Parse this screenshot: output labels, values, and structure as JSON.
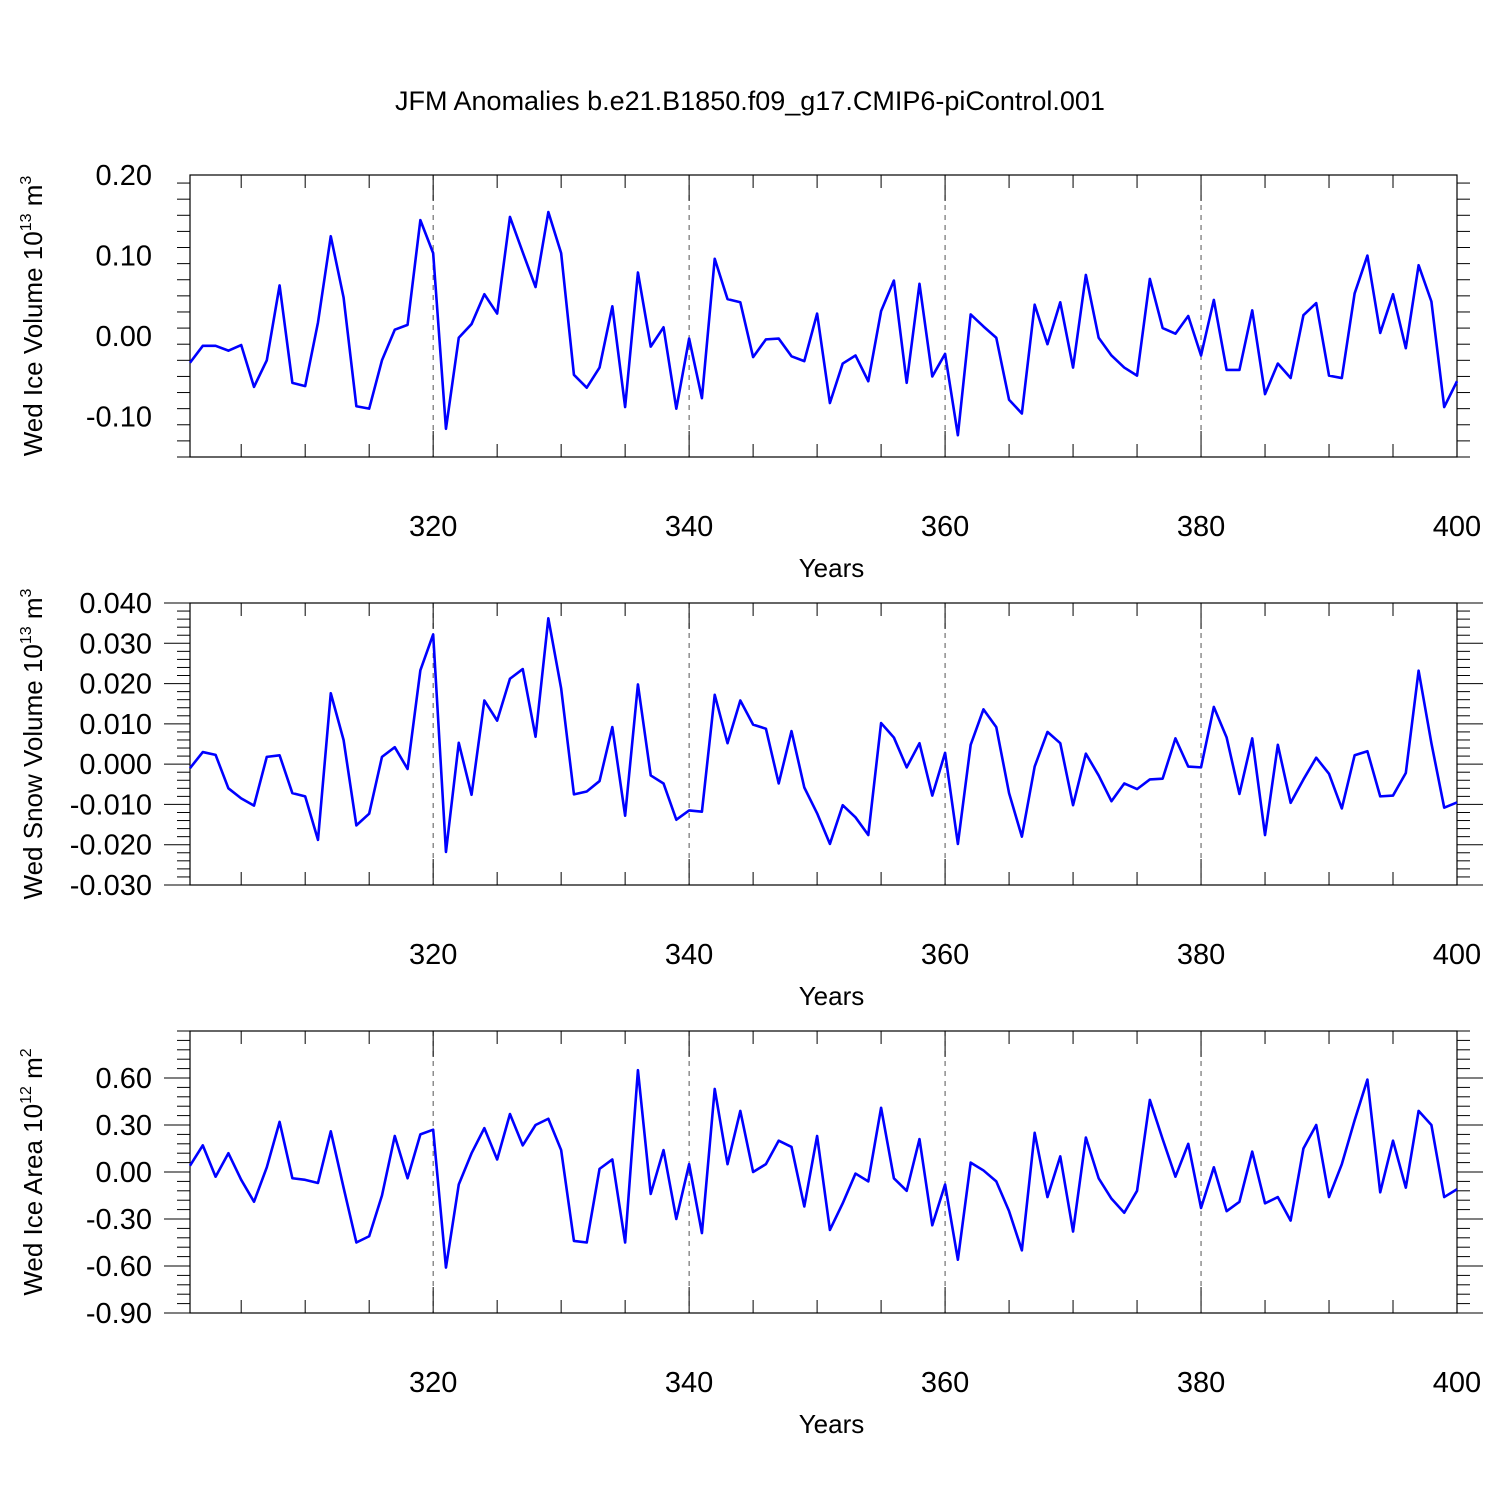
{
  "title": "JFM Anomalies b.e21.B1850.f09_g17.CMIP6-piControl.001",
  "colors": {
    "series": "#0000ff",
    "axis": "#000000",
    "grid": "#555555"
  },
  "chart_data": [
    {
      "type": "line",
      "ylabel": {
        "main": "Wed Ice Volume 10",
        "sup": "13",
        "unit": " m",
        "unit_sup": "3"
      },
      "xlabel": "Years",
      "xlim": [
        301,
        400
      ],
      "ylim": [
        -0.15,
        0.2
      ],
      "xticks": [
        "320",
        "340",
        "360",
        "380",
        "400"
      ],
      "yticks": [
        "0.20",
        "0.10",
        "0.00",
        "-0.10"
      ],
      "grid": "dashed vertical at major x ticks",
      "series": [
        {
          "x_start": 301,
          "values": [
            -0.033,
            -0.012,
            -0.012,
            -0.018,
            -0.011,
            -0.063,
            -0.03,
            0.063,
            -0.058,
            -0.062,
            0.017,
            0.124,
            0.048,
            -0.087,
            -0.09,
            -0.03,
            0.008,
            0.014,
            0.144,
            0.103,
            -0.115,
            -0.002,
            0.015,
            0.052,
            0.028,
            0.148,
            0.104,
            0.061,
            0.154,
            0.103,
            -0.048,
            -0.064,
            -0.039,
            0.037,
            -0.088,
            0.079,
            -0.013,
            0.011,
            -0.09,
            -0.003,
            -0.077,
            0.096,
            0.046,
            0.042,
            -0.026,
            -0.004,
            -0.003,
            -0.025,
            -0.031,
            0.028,
            -0.083,
            -0.034,
            -0.024,
            -0.056,
            0.031,
            0.069,
            -0.058,
            0.065,
            -0.05,
            -0.022,
            -0.123,
            0.027,
            0.012,
            -0.002,
            -0.079,
            -0.096,
            0.039,
            -0.01,
            0.042,
            -0.039,
            0.076,
            -0.002,
            -0.024,
            -0.039,
            -0.049,
            0.071,
            0.01,
            0.003,
            0.025,
            -0.024,
            0.045,
            -0.042,
            -0.042,
            0.032,
            -0.072,
            -0.034,
            -0.052,
            0.026,
            0.041,
            -0.049,
            -0.052,
            0.053,
            0.1,
            0.004,
            0.052,
            -0.015,
            0.088,
            0.043,
            -0.088,
            -0.056
          ]
        }
      ]
    },
    {
      "type": "line",
      "ylabel": {
        "main": "Wed Snow Volume 10",
        "sup": "13",
        "unit": " m",
        "unit_sup": "3"
      },
      "xlabel": "Years",
      "xlim": [
        301,
        400
      ],
      "ylim": [
        -0.03,
        0.04
      ],
      "xticks": [
        "320",
        "340",
        "360",
        "380",
        "400"
      ],
      "yticks": [
        "0.040",
        "0.030",
        "0.020",
        "0.010",
        "0.000",
        "-0.010",
        "-0.020",
        "-0.030"
      ],
      "grid": "dashed vertical at major x ticks",
      "series": [
        {
          "x_start": 301,
          "values": [
            -0.001,
            0.003,
            0.0023,
            -0.006,
            -0.0085,
            -0.0103,
            0.0018,
            0.0022,
            -0.0072,
            -0.008,
            -0.0188,
            0.0176,
            0.006,
            -0.0152,
            -0.0123,
            0.0018,
            0.0042,
            -0.0012,
            0.0233,
            0.0322,
            -0.0218,
            0.0053,
            -0.0076,
            0.0158,
            0.0108,
            0.0212,
            0.0236,
            0.0068,
            0.0362,
            0.0188,
            -0.0075,
            -0.0068,
            -0.0042,
            0.0092,
            -0.0128,
            0.0198,
            -0.0028,
            -0.0048,
            -0.0138,
            -0.0115,
            -0.0118,
            0.0172,
            0.0052,
            0.0158,
            0.0098,
            0.0088,
            -0.0048,
            0.0082,
            -0.0058,
            -0.0122,
            -0.0198,
            -0.0102,
            -0.0132,
            -0.0176,
            0.0102,
            0.0066,
            -0.0008,
            0.0052,
            -0.0078,
            0.0028,
            -0.0198,
            0.0048,
            0.0136,
            0.0092,
            -0.0072,
            -0.018,
            -0.0006,
            0.008,
            0.0052,
            -0.0102,
            0.0026,
            -0.0028,
            -0.0092,
            -0.0048,
            -0.0062,
            -0.0038,
            -0.0036,
            0.0064,
            -0.0006,
            -0.0008,
            0.0142,
            0.0066,
            -0.0074,
            0.0064,
            -0.0176,
            0.0048,
            -0.0096,
            -0.0038,
            0.0016,
            -0.0024,
            -0.011,
            0.0022,
            0.0032,
            -0.008,
            -0.0078,
            -0.0022,
            0.0232,
            0.0052,
            -0.0108,
            -0.0095
          ]
        }
      ]
    },
    {
      "type": "line",
      "ylabel": {
        "main": "Wed Ice Area 10",
        "sup": "12",
        "unit": " m",
        "unit_sup": "2"
      },
      "xlabel": "Years",
      "xlim": [
        301,
        400
      ],
      "ylim": [
        -0.9,
        0.9
      ],
      "xticks": [
        "320",
        "340",
        "360",
        "380",
        "400"
      ],
      "yticks": [
        "0.60",
        "0.30",
        "0.00",
        "-0.30",
        "-0.60",
        "-0.90"
      ],
      "grid": "dashed vertical at major x ticks",
      "series": [
        {
          "x_start": 301,
          "values": [
            0.04,
            0.17,
            -0.03,
            0.12,
            -0.05,
            -0.19,
            0.03,
            0.32,
            -0.04,
            -0.05,
            -0.07,
            0.26,
            -0.1,
            -0.45,
            -0.41,
            -0.15,
            0.23,
            -0.04,
            0.24,
            0.27,
            -0.61,
            -0.08,
            0.12,
            0.28,
            0.08,
            0.37,
            0.17,
            0.3,
            0.34,
            0.14,
            -0.44,
            -0.45,
            0.02,
            0.08,
            -0.45,
            0.65,
            -0.14,
            0.14,
            -0.3,
            0.05,
            -0.39,
            0.53,
            0.05,
            0.39,
            0.0,
            0.05,
            0.2,
            0.16,
            -0.22,
            0.23,
            -0.37,
            -0.2,
            -0.01,
            -0.06,
            0.41,
            -0.04,
            -0.12,
            0.21,
            -0.34,
            -0.08,
            -0.56,
            0.06,
            0.01,
            -0.06,
            -0.25,
            -0.5,
            0.25,
            -0.16,
            0.1,
            -0.38,
            0.22,
            -0.04,
            -0.17,
            -0.26,
            -0.12,
            0.46,
            0.21,
            -0.03,
            0.18,
            -0.23,
            0.03,
            -0.25,
            -0.19,
            0.13,
            -0.2,
            -0.16,
            -0.31,
            0.15,
            0.3,
            -0.16,
            0.05,
            0.33,
            0.59,
            -0.13,
            0.2,
            -0.1,
            0.39,
            0.3,
            -0.16,
            -0.11
          ]
        }
      ]
    }
  ]
}
